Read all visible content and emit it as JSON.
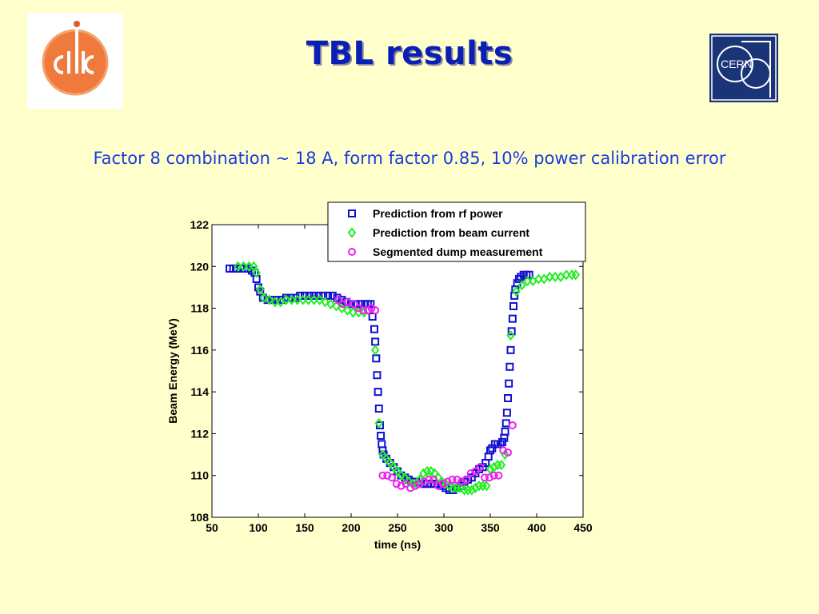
{
  "slide": {
    "title": "TBL results",
    "subtitle": "Factor 8 combination ~ 18 A,  form factor 0.85, 10% power calibration error",
    "logo_left": "CLIC",
    "logo_right": "CERN"
  },
  "colors": {
    "background": "#ffffcc",
    "title": "#0a1fb4",
    "subtitle": "#1a3ae0",
    "rf_power": "#1010d0",
    "beam_current": "#22ee22",
    "dump": "#ee22ee"
  },
  "chart_data": {
    "type": "scatter",
    "title": "",
    "xlabel": "time (ns)",
    "ylabel": "Beam Energy (MeV)",
    "xlim": [
      50,
      450
    ],
    "ylim": [
      108,
      122
    ],
    "xticks": [
      50,
      100,
      150,
      200,
      250,
      300,
      350,
      400,
      450
    ],
    "yticks": [
      108,
      110,
      112,
      114,
      116,
      118,
      120,
      122
    ],
    "grid": false,
    "legend_position": "top-right",
    "series": [
      {
        "name": "Prediction from rf power",
        "marker": "square",
        "color": "#1010d0",
        "points": [
          [
            69,
            119.9
          ],
          [
            73,
            119.9
          ],
          [
            77,
            119.9
          ],
          [
            81,
            119.9
          ],
          [
            85,
            119.9
          ],
          [
            89,
            119.9
          ],
          [
            93,
            119.8
          ],
          [
            96,
            119.7
          ],
          [
            98,
            119.4
          ],
          [
            100,
            119.0
          ],
          [
            102,
            118.8
          ],
          [
            105,
            118.5
          ],
          [
            110,
            118.4
          ],
          [
            115,
            118.4
          ],
          [
            120,
            118.4
          ],
          [
            125,
            118.4
          ],
          [
            130,
            118.5
          ],
          [
            135,
            118.5
          ],
          [
            140,
            118.5
          ],
          [
            145,
            118.6
          ],
          [
            150,
            118.6
          ],
          [
            155,
            118.6
          ],
          [
            160,
            118.6
          ],
          [
            165,
            118.6
          ],
          [
            170,
            118.6
          ],
          [
            175,
            118.6
          ],
          [
            180,
            118.6
          ],
          [
            185,
            118.5
          ],
          [
            190,
            118.4
          ],
          [
            195,
            118.3
          ],
          [
            200,
            118.2
          ],
          [
            205,
            118.2
          ],
          [
            210,
            118.2
          ],
          [
            215,
            118.2
          ],
          [
            218,
            118.2
          ],
          [
            221,
            118.2
          ],
          [
            223,
            117.6
          ],
          [
            225,
            117.0
          ],
          [
            226,
            116.4
          ],
          [
            227,
            115.6
          ],
          [
            228,
            114.8
          ],
          [
            229,
            114.0
          ],
          [
            230,
            113.2
          ],
          [
            231,
            112.4
          ],
          [
            232,
            111.9
          ],
          [
            233,
            111.5
          ],
          [
            234,
            111.2
          ],
          [
            235,
            111.0
          ],
          [
            238,
            110.8
          ],
          [
            242,
            110.6
          ],
          [
            246,
            110.4
          ],
          [
            250,
            110.2
          ],
          [
            254,
            110.0
          ],
          [
            258,
            109.9
          ],
          [
            262,
            109.8
          ],
          [
            266,
            109.7
          ],
          [
            270,
            109.7
          ],
          [
            274,
            109.6
          ],
          [
            278,
            109.6
          ],
          [
            282,
            109.6
          ],
          [
            286,
            109.6
          ],
          [
            290,
            109.6
          ],
          [
            294,
            109.6
          ],
          [
            298,
            109.5
          ],
          [
            302,
            109.4
          ],
          [
            306,
            109.3
          ],
          [
            310,
            109.3
          ],
          [
            314,
            109.4
          ],
          [
            318,
            109.5
          ],
          [
            322,
            109.7
          ],
          [
            326,
            109.8
          ],
          [
            330,
            109.9
          ],
          [
            334,
            110.1
          ],
          [
            338,
            110.3
          ],
          [
            342,
            110.4
          ],
          [
            345,
            110.6
          ],
          [
            348,
            110.9
          ],
          [
            350,
            111.2
          ],
          [
            352,
            111.3
          ],
          [
            355,
            111.5
          ],
          [
            358,
            111.5
          ],
          [
            361,
            111.5
          ],
          [
            363,
            111.6
          ],
          [
            365,
            111.8
          ],
          [
            366,
            112.1
          ],
          [
            367,
            112.5
          ],
          [
            368,
            113.0
          ],
          [
            369,
            113.7
          ],
          [
            370,
            114.4
          ],
          [
            371,
            115.2
          ],
          [
            372,
            116.0
          ],
          [
            373,
            116.9
          ],
          [
            374,
            117.5
          ],
          [
            375,
            118.1
          ],
          [
            376,
            118.6
          ],
          [
            377,
            118.9
          ],
          [
            379,
            119.2
          ],
          [
            381,
            119.4
          ],
          [
            383,
            119.5
          ],
          [
            386,
            119.6
          ],
          [
            389,
            119.6
          ],
          [
            392,
            119.6
          ]
        ]
      },
      {
        "name": "Prediction from beam current",
        "marker": "diamond",
        "color": "#22ee22",
        "points": [
          [
            78,
            120.0
          ],
          [
            84,
            120.0
          ],
          [
            90,
            120.0
          ],
          [
            95,
            120.0
          ],
          [
            98,
            119.7
          ],
          [
            102,
            118.9
          ],
          [
            106,
            118.5
          ],
          [
            112,
            118.4
          ],
          [
            118,
            118.3
          ],
          [
            124,
            118.3
          ],
          [
            130,
            118.4
          ],
          [
            136,
            118.4
          ],
          [
            142,
            118.4
          ],
          [
            148,
            118.4
          ],
          [
            154,
            118.4
          ],
          [
            160,
            118.4
          ],
          [
            166,
            118.4
          ],
          [
            172,
            118.3
          ],
          [
            178,
            118.2
          ],
          [
            184,
            118.1
          ],
          [
            190,
            118.0
          ],
          [
            196,
            117.9
          ],
          [
            202,
            117.8
          ],
          [
            208,
            117.8
          ],
          [
            214,
            117.8
          ],
          [
            226,
            116.0
          ],
          [
            230,
            112.5
          ],
          [
            234,
            111.0
          ],
          [
            238,
            110.8
          ],
          [
            242,
            110.6
          ],
          [
            246,
            110.4
          ],
          [
            250,
            110.2
          ],
          [
            254,
            110.0
          ],
          [
            258,
            109.9
          ],
          [
            262,
            109.7
          ],
          [
            266,
            109.6
          ],
          [
            270,
            109.6
          ],
          [
            274,
            109.8
          ],
          [
            278,
            110.1
          ],
          [
            282,
            110.2
          ],
          [
            286,
            110.2
          ],
          [
            290,
            110.1
          ],
          [
            294,
            109.9
          ],
          [
            298,
            109.7
          ],
          [
            302,
            109.6
          ],
          [
            306,
            109.5
          ],
          [
            310,
            109.4
          ],
          [
            314,
            109.4
          ],
          [
            318,
            109.4
          ],
          [
            322,
            109.3
          ],
          [
            326,
            109.3
          ],
          [
            330,
            109.3
          ],
          [
            334,
            109.4
          ],
          [
            338,
            109.5
          ],
          [
            342,
            109.5
          ],
          [
            346,
            109.5
          ],
          [
            350,
            110.3
          ],
          [
            354,
            110.4
          ],
          [
            358,
            110.5
          ],
          [
            362,
            110.5
          ],
          [
            366,
            111.0
          ],
          [
            372,
            116.7
          ],
          [
            378,
            118.8
          ],
          [
            384,
            119.1
          ],
          [
            390,
            119.3
          ],
          [
            396,
            119.3
          ],
          [
            402,
            119.4
          ],
          [
            408,
            119.4
          ],
          [
            414,
            119.5
          ],
          [
            420,
            119.5
          ],
          [
            426,
            119.5
          ],
          [
            432,
            119.6
          ],
          [
            438,
            119.6
          ],
          [
            442,
            119.6
          ]
        ]
      },
      {
        "name": "Segmented dump measurement",
        "marker": "circle",
        "color": "#ee22ee",
        "points": [
          [
            186,
            118.4
          ],
          [
            191,
            118.2
          ],
          [
            196,
            118.3
          ],
          [
            203,
            118.2
          ],
          [
            208,
            118.0
          ],
          [
            213,
            117.9
          ],
          [
            218,
            117.9
          ],
          [
            222,
            118.0
          ],
          [
            226,
            117.9
          ],
          [
            234,
            110.0
          ],
          [
            239,
            110.0
          ],
          [
            244,
            109.9
          ],
          [
            249,
            109.6
          ],
          [
            254,
            109.5
          ],
          [
            259,
            109.6
          ],
          [
            264,
            109.4
          ],
          [
            269,
            109.5
          ],
          [
            274,
            109.6
          ],
          [
            279,
            109.7
          ],
          [
            284,
            109.8
          ],
          [
            289,
            109.8
          ],
          [
            294,
            109.5
          ],
          [
            299,
            109.6
          ],
          [
            304,
            109.7
          ],
          [
            309,
            109.8
          ],
          [
            314,
            109.8
          ],
          [
            319,
            109.7
          ],
          [
            324,
            109.8
          ],
          [
            329,
            110.1
          ],
          [
            334,
            110.2
          ],
          [
            339,
            110.4
          ],
          [
            344,
            109.9
          ],
          [
            349,
            109.9
          ],
          [
            354,
            110.0
          ],
          [
            359,
            110.0
          ],
          [
            364,
            111.2
          ],
          [
            369,
            111.1
          ],
          [
            374,
            112.4
          ]
        ]
      }
    ]
  }
}
